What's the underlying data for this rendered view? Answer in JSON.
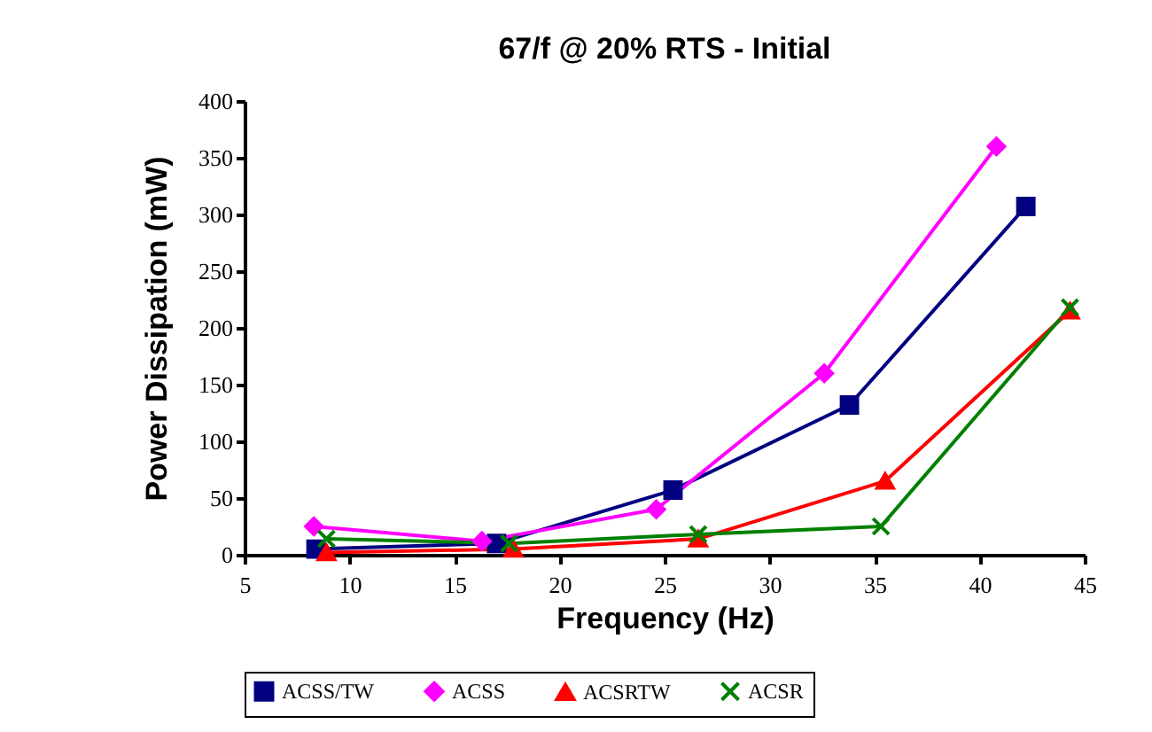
{
  "chart_data": {
    "type": "line",
    "title": "67/f @ 20% RTS - Initial",
    "xlabel": "Frequency (Hz)",
    "ylabel": "Power Dissipation (mW)",
    "xlim": [
      5,
      45
    ],
    "xticks": [
      5,
      10,
      15,
      20,
      25,
      30,
      35,
      40,
      45
    ],
    "ylim": [
      0,
      400
    ],
    "yticks": [
      0,
      50,
      100,
      150,
      200,
      250,
      300,
      350,
      400
    ],
    "grid": false,
    "legend": "bottom",
    "series": [
      {
        "name": "ACSS/TW",
        "color": "#000080",
        "marker": "square",
        "x": [
          8.4,
          17.0,
          25.4,
          33.8,
          42.2
        ],
        "values": [
          5,
          10,
          57,
          132,
          307
        ]
      },
      {
        "name": "ACSS",
        "color": "#ff00ff",
        "marker": "diamond",
        "x": [
          8.3,
          16.3,
          24.6,
          32.6,
          40.8
        ],
        "values": [
          25,
          12,
          40,
          160,
          360
        ]
      },
      {
        "name": "ACSRTW",
        "color": "#ff0000",
        "marker": "triangle",
        "x": [
          8.9,
          17.8,
          26.6,
          35.5,
          44.3
        ],
        "values": [
          2,
          5,
          14,
          65,
          215
        ]
      },
      {
        "name": "ACSR",
        "color": "#008000",
        "marker": "cross",
        "x": [
          8.9,
          17.6,
          26.6,
          35.3,
          44.3
        ],
        "values": [
          14,
          10,
          18,
          25,
          218
        ]
      }
    ]
  }
}
